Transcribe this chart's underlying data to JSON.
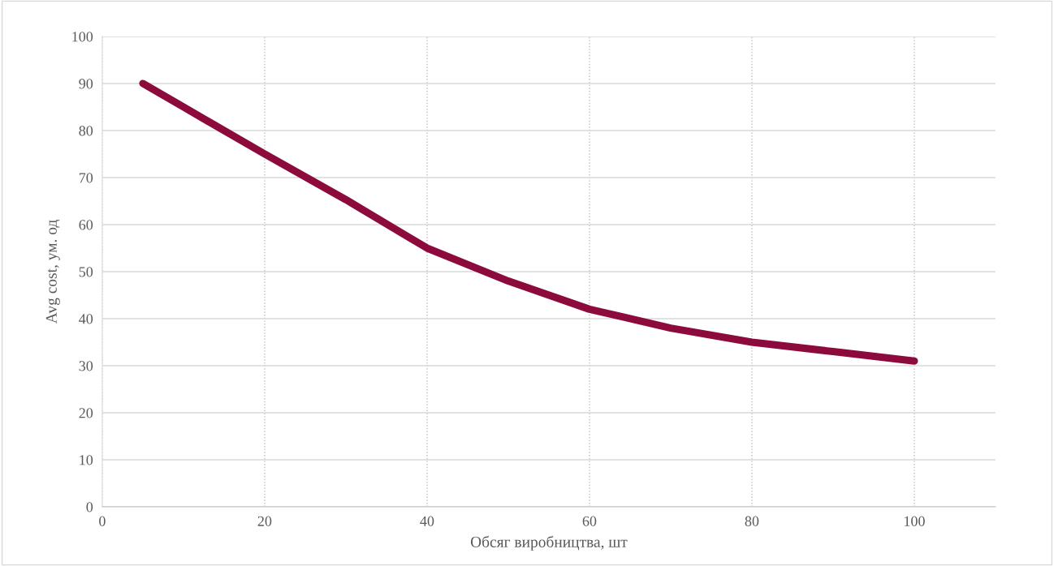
{
  "chart_data": {
    "type": "line",
    "xlabel": "Обсяг виробництва, шт",
    "ylabel": "Avg cost, ум. од",
    "x": [
      5,
      10,
      20,
      30,
      40,
      50,
      60,
      70,
      80,
      90,
      100
    ],
    "series": [
      {
        "color": "#8c0a3c",
        "values": [
          90,
          85,
          75,
          65.3,
          55,
          48,
          42,
          38,
          35,
          33,
          31
        ]
      }
    ],
    "xlim": [
      0,
      110
    ],
    "xticks": [
      0,
      20,
      40,
      60,
      80,
      100
    ],
    "ylim": [
      0,
      100
    ],
    "yticks": [
      0,
      10,
      20,
      30,
      40,
      50,
      60,
      70,
      80,
      90,
      100
    ],
    "grid": true,
    "marker": "none",
    "line_style": "solid"
  }
}
